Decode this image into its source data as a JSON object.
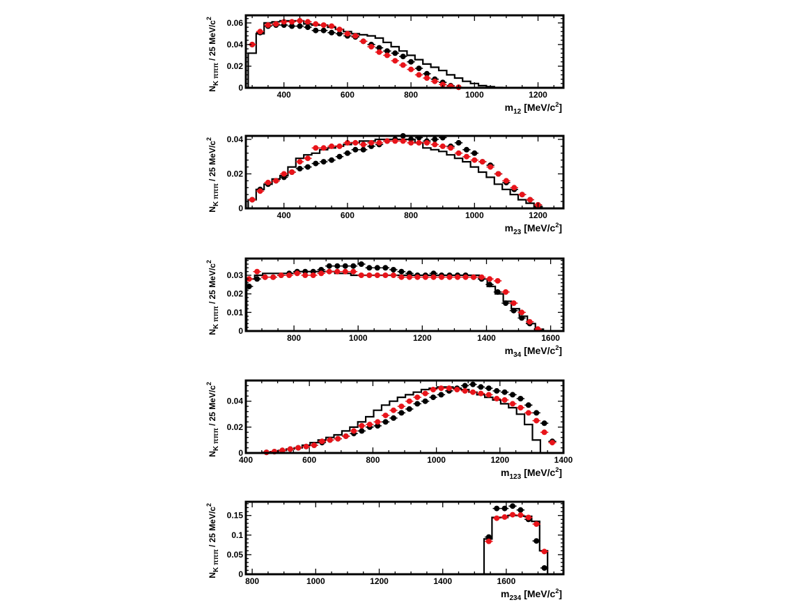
{
  "colors": {
    "data": "#000000",
    "model": "#e8141a",
    "histogram": "#000000"
  },
  "chart_data": [
    {
      "type": "histogram+scatter",
      "x_quantity": "m",
      "x_sub": "12",
      "x_unit": "[MeV/c",
      "x_unit_sup": "2",
      "x_unit_tail": "]",
      "y_quantity": "N",
      "y_sub": "K πππ",
      "y_unit": "/ 25 MeV/c",
      "y_unit_sup": "2",
      "xlim": [
        280,
        1280
      ],
      "ylim": [
        0,
        0.067
      ],
      "x_ticks": [
        400,
        600,
        800,
        1000,
        1200
      ],
      "x_tick_labels": [
        "400",
        "600",
        "800",
        "1000",
        "1200"
      ],
      "y_ticks": [
        0,
        0.02,
        0.04,
        0.06
      ],
      "y_tick_labels": [
        "0",
        "0.02",
        "0.04",
        "0.06"
      ],
      "bin_edges_start": 287.5,
      "bin_width": 25,
      "histogram": [
        0.032,
        0.05,
        0.06,
        0.061,
        0.062,
        0.062,
        0.062,
        0.059,
        0.058,
        0.058,
        0.056,
        0.054,
        0.052,
        0.05,
        0.049,
        0.048,
        0.046,
        0.042,
        0.038,
        0.034,
        0.03,
        0.026,
        0.022,
        0.019,
        0.016,
        0.012,
        0.009,
        0.006,
        0.004,
        0.002,
        0.001,
        0.0003,
        0.0
      ],
      "series": [
        {
          "name": "",
          "color": "#000000",
          "x": [
            300,
            325,
            350,
            375,
            400,
            425,
            450,
            475,
            500,
            525,
            550,
            575,
            600,
            625,
            650,
            675,
            700,
            725,
            750,
            775,
            800,
            825,
            850,
            875,
            900,
            925,
            950
          ],
          "y": [
            0.04,
            0.051,
            0.057,
            0.058,
            0.058,
            0.057,
            0.057,
            0.056,
            0.053,
            0.053,
            0.051,
            0.05,
            0.048,
            0.047,
            0.043,
            0.04,
            0.037,
            0.034,
            0.032,
            0.029,
            0.024,
            0.018,
            0.013,
            0.008,
            0.005,
            0.002,
            0.0005
          ]
        },
        {
          "name": "",
          "color": "#e8141a",
          "x": [
            300,
            325,
            350,
            375,
            400,
            425,
            450,
            475,
            500,
            525,
            550,
            575,
            600,
            625,
            650,
            675,
            700,
            725,
            750,
            775,
            800,
            825,
            850,
            875,
            900,
            925,
            950
          ],
          "y": [
            0.04,
            0.052,
            0.058,
            0.059,
            0.061,
            0.061,
            0.062,
            0.061,
            0.059,
            0.058,
            0.057,
            0.054,
            0.05,
            0.048,
            0.043,
            0.038,
            0.033,
            0.03,
            0.025,
            0.021,
            0.017,
            0.012,
            0.009,
            0.006,
            0.003,
            0.0015,
            0.0005
          ]
        }
      ]
    },
    {
      "type": "histogram+scatter",
      "x_quantity": "m",
      "x_sub": "23",
      "x_unit": "[MeV/c",
      "x_unit_sup": "2",
      "x_unit_tail": "]",
      "y_quantity": "N",
      "y_sub": "K πππ",
      "y_unit": "/ 25 MeV/c",
      "y_unit_sup": "2",
      "xlim": [
        280,
        1280
      ],
      "ylim": [
        0,
        0.042
      ],
      "x_ticks": [
        400,
        600,
        800,
        1000,
        1200
      ],
      "x_tick_labels": [
        "400",
        "600",
        "800",
        "1000",
        "1200"
      ],
      "y_ticks": [
        0,
        0.02,
        0.04
      ],
      "y_tick_labels": [
        "0",
        "0.02",
        "0.04"
      ],
      "bin_edges_start": 287.5,
      "bin_width": 25,
      "histogram": [
        0.005,
        0.011,
        0.014,
        0.017,
        0.019,
        0.024,
        0.029,
        0.031,
        0.032,
        0.034,
        0.035,
        0.036,
        0.037,
        0.038,
        0.039,
        0.039,
        0.04,
        0.04,
        0.04,
        0.04,
        0.04,
        0.038,
        0.035,
        0.034,
        0.033,
        0.031,
        0.029,
        0.027,
        0.024,
        0.021,
        0.018,
        0.014,
        0.011,
        0.008,
        0.005,
        0.003,
        0.001,
        0.0
      ],
      "series": [
        {
          "name": "",
          "color": "#000000",
          "x": [
            300,
            325,
            350,
            375,
            400,
            425,
            450,
            475,
            500,
            525,
            550,
            575,
            600,
            625,
            650,
            675,
            700,
            725,
            750,
            775,
            800,
            825,
            850,
            875,
            900,
            925,
            950,
            975,
            1000,
            1025,
            1050,
            1075,
            1100,
            1125,
            1150,
            1175,
            1200
          ],
          "y": [
            0.005,
            0.011,
            0.014,
            0.016,
            0.018,
            0.021,
            0.023,
            0.024,
            0.026,
            0.027,
            0.028,
            0.03,
            0.032,
            0.034,
            0.034,
            0.036,
            0.037,
            0.039,
            0.04,
            0.042,
            0.04,
            0.041,
            0.039,
            0.04,
            0.041,
            0.036,
            0.038,
            0.034,
            0.032,
            0.027,
            0.025,
            0.02,
            0.015,
            0.011,
            0.008,
            0.005,
            0.002
          ]
        },
        {
          "name": "",
          "color": "#e8141a",
          "x": [
            300,
            325,
            350,
            375,
            400,
            425,
            450,
            475,
            500,
            525,
            550,
            575,
            600,
            625,
            650,
            675,
            700,
            725,
            750,
            775,
            800,
            825,
            850,
            875,
            900,
            925,
            950,
            975,
            1000,
            1025,
            1050,
            1075,
            1100,
            1125,
            1150,
            1175,
            1200
          ],
          "y": [
            0.005,
            0.01,
            0.015,
            0.016,
            0.02,
            0.021,
            0.027,
            0.029,
            0.035,
            0.035,
            0.036,
            0.036,
            0.038,
            0.038,
            0.037,
            0.038,
            0.038,
            0.039,
            0.039,
            0.039,
            0.038,
            0.038,
            0.038,
            0.037,
            0.036,
            0.035,
            0.032,
            0.03,
            0.028,
            0.027,
            0.024,
            0.02,
            0.016,
            0.012,
            0.008,
            0.005,
            0.002
          ]
        }
      ]
    },
    {
      "type": "histogram+scatter",
      "x_quantity": "m",
      "x_sub": "34",
      "x_unit": "[MeV/c",
      "x_unit_sup": "2",
      "x_unit_tail": "]",
      "y_quantity": "N",
      "y_sub": "K πππ",
      "y_unit": "/ 25 MeV/c",
      "y_unit_sup": "2",
      "xlim": [
        650,
        1640
      ],
      "ylim": [
        0,
        0.039
      ],
      "x_ticks": [
        800,
        1000,
        1200,
        1400,
        1600
      ],
      "x_tick_labels": [
        "800",
        "1000",
        "1200",
        "1400",
        "1600"
      ],
      "y_ticks": [
        0,
        0.01,
        0.02,
        0.03
      ],
      "y_tick_labels": [
        "0",
        "0.01",
        "0.02",
        "0.03"
      ],
      "bin_edges_start": 652.5,
      "bin_width": 25,
      "histogram": [
        0.028,
        0.03,
        0.031,
        0.031,
        0.031,
        0.031,
        0.032,
        0.032,
        0.032,
        0.032,
        0.032,
        0.031,
        0.031,
        0.03,
        0.03,
        0.03,
        0.03,
        0.03,
        0.03,
        0.03,
        0.03,
        0.03,
        0.03,
        0.03,
        0.03,
        0.03,
        0.03,
        0.03,
        0.03,
        0.028,
        0.024,
        0.02,
        0.016,
        0.012,
        0.008,
        0.004,
        0.001
      ],
      "series": [
        {
          "name": "",
          "color": "#000000",
          "x": [
            660,
            685,
            710,
            735,
            760,
            785,
            810,
            835,
            860,
            885,
            910,
            935,
            960,
            985,
            1010,
            1035,
            1060,
            1085,
            1110,
            1135,
            1160,
            1185,
            1210,
            1235,
            1260,
            1285,
            1310,
            1335,
            1360,
            1385,
            1410,
            1435,
            1460,
            1485,
            1510,
            1535,
            1560
          ],
          "y": [
            0.024,
            0.028,
            0.029,
            0.029,
            0.03,
            0.031,
            0.032,
            0.032,
            0.032,
            0.033,
            0.035,
            0.035,
            0.035,
            0.035,
            0.036,
            0.034,
            0.034,
            0.034,
            0.033,
            0.032,
            0.031,
            0.03,
            0.03,
            0.031,
            0.03,
            0.03,
            0.03,
            0.03,
            0.029,
            0.028,
            0.025,
            0.021,
            0.015,
            0.011,
            0.007,
            0.004,
            0.001
          ]
        },
        {
          "name": "",
          "color": "#e8141a",
          "x": [
            660,
            685,
            710,
            735,
            760,
            785,
            810,
            835,
            860,
            885,
            910,
            935,
            960,
            985,
            1010,
            1035,
            1060,
            1085,
            1110,
            1135,
            1160,
            1185,
            1210,
            1235,
            1260,
            1285,
            1310,
            1335,
            1360,
            1385,
            1410,
            1435,
            1460,
            1485,
            1510,
            1535,
            1560
          ],
          "y": [
            0.028,
            0.032,
            0.029,
            0.029,
            0.03,
            0.03,
            0.031,
            0.03,
            0.03,
            0.031,
            0.032,
            0.032,
            0.032,
            0.032,
            0.03,
            0.03,
            0.03,
            0.03,
            0.03,
            0.029,
            0.029,
            0.029,
            0.029,
            0.029,
            0.029,
            0.029,
            0.029,
            0.029,
            0.029,
            0.029,
            0.028,
            0.027,
            0.021,
            0.015,
            0.01,
            0.005,
            0.001
          ]
        }
      ]
    },
    {
      "type": "histogram+scatter",
      "x_quantity": "m",
      "x_sub": "123",
      "x_unit": "[MeV/c",
      "x_unit_sup": "2",
      "x_unit_tail": "]",
      "y_quantity": "N",
      "y_sub": "K πππ",
      "y_unit": "/ 25 MeV/c",
      "y_unit_sup": "2",
      "xlim": [
        400,
        1400
      ],
      "ylim": [
        0,
        0.056
      ],
      "x_ticks": [
        400,
        600,
        800,
        1000,
        1200,
        1400
      ],
      "x_tick_labels": [
        "400",
        "600",
        "800",
        "1000",
        "1200",
        "1400"
      ],
      "y_ticks": [
        0,
        0.02,
        0.04
      ],
      "y_tick_labels": [
        "0",
        "0.02",
        "0.04"
      ],
      "bin_edges_start": 452.5,
      "bin_width": 25,
      "histogram": [
        0.0005,
        0.001,
        0.002,
        0.003,
        0.004,
        0.006,
        0.008,
        0.01,
        0.012,
        0.014,
        0.017,
        0.02,
        0.024,
        0.028,
        0.033,
        0.037,
        0.04,
        0.043,
        0.045,
        0.047,
        0.049,
        0.05,
        0.051,
        0.051,
        0.05,
        0.049,
        0.047,
        0.045,
        0.043,
        0.041,
        0.038,
        0.035,
        0.03,
        0.022,
        0.01,
        0.0
      ],
      "series": [
        {
          "name": "",
          "color": "#000000",
          "x": [
            465,
            490,
            515,
            540,
            565,
            590,
            615,
            640,
            665,
            690,
            715,
            740,
            765,
            790,
            815,
            840,
            865,
            890,
            915,
            940,
            965,
            990,
            1015,
            1040,
            1065,
            1090,
            1115,
            1140,
            1165,
            1190,
            1215,
            1240,
            1265,
            1290,
            1315,
            1340,
            1365
          ],
          "y": [
            0.0005,
            0.001,
            0.002,
            0.003,
            0.004,
            0.005,
            0.006,
            0.008,
            0.01,
            0.011,
            0.013,
            0.015,
            0.017,
            0.02,
            0.021,
            0.024,
            0.027,
            0.031,
            0.034,
            0.038,
            0.04,
            0.043,
            0.045,
            0.048,
            0.05,
            0.052,
            0.053,
            0.051,
            0.05,
            0.048,
            0.047,
            0.045,
            0.042,
            0.037,
            0.031,
            0.023,
            0.009
          ]
        },
        {
          "name": "",
          "color": "#e8141a",
          "x": [
            465,
            490,
            515,
            540,
            565,
            590,
            615,
            640,
            665,
            690,
            715,
            740,
            765,
            790,
            815,
            840,
            865,
            890,
            915,
            940,
            965,
            990,
            1015,
            1040,
            1065,
            1090,
            1115,
            1140,
            1165,
            1190,
            1215,
            1240,
            1265,
            1290,
            1315,
            1340,
            1365
          ],
          "y": [
            0.0005,
            0.001,
            0.002,
            0.003,
            0.004,
            0.005,
            0.006,
            0.009,
            0.01,
            0.011,
            0.013,
            0.017,
            0.021,
            0.022,
            0.024,
            0.029,
            0.033,
            0.036,
            0.04,
            0.043,
            0.046,
            0.049,
            0.05,
            0.05,
            0.049,
            0.048,
            0.047,
            0.046,
            0.045,
            0.042,
            0.041,
            0.038,
            0.035,
            0.031,
            0.025,
            0.016,
            0.008
          ]
        }
      ]
    },
    {
      "type": "histogram+scatter",
      "x_quantity": "m",
      "x_sub": "234",
      "x_unit": "[MeV/c",
      "x_unit_sup": "2",
      "x_unit_tail": "]",
      "y_quantity": "N",
      "y_sub": "K πππ",
      "y_unit": "/ 25 MeV/c",
      "y_unit_sup": "2",
      "xlim": [
        780,
        1780
      ],
      "ylim": [
        0,
        0.185
      ],
      "x_ticks": [
        800,
        1000,
        1200,
        1400,
        1600
      ],
      "x_tick_labels": [
        "800",
        "1000",
        "1200",
        "1400",
        "1600"
      ],
      "y_ticks": [
        0,
        0.05,
        0.1,
        0.15
      ],
      "y_tick_labels": [
        "0",
        "0.05",
        "0.1",
        "0.15"
      ],
      "bin_edges_start": 1530,
      "bin_width": 25,
      "histogram": [
        0.09,
        0.145,
        0.145,
        0.15,
        0.15,
        0.148,
        0.135,
        0.06
      ],
      "series": [
        {
          "name": "",
          "color": "#000000",
          "x": [
            1545,
            1570,
            1595,
            1620,
            1645,
            1670,
            1695,
            1720
          ],
          "y": [
            0.095,
            0.168,
            0.168,
            0.174,
            0.164,
            0.14,
            0.085,
            0.016
          ]
        },
        {
          "name": "",
          "color": "#e8141a",
          "x": [
            1545,
            1570,
            1595,
            1620,
            1645,
            1670,
            1695,
            1720
          ],
          "y": [
            0.084,
            0.143,
            0.146,
            0.152,
            0.151,
            0.145,
            0.128,
            0.058
          ]
        }
      ]
    }
  ]
}
